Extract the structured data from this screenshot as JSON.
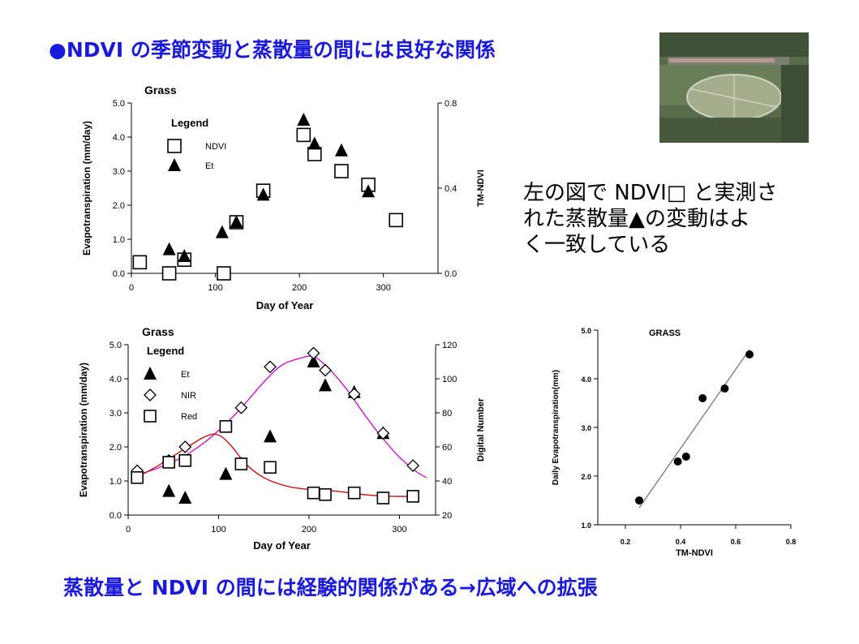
{
  "slide": {
    "title": "●NDVI の季節変動と蒸散量の間には良好な関係",
    "side_text": [
      "左の図で NDVI□ と実測さ",
      "れた蒸散量▲の変動はよ",
      "く一致している"
    ],
    "bottom_text": "蒸散量と NDVI の間には経験的関係がある→広域への拡張"
  },
  "photo": {
    "icon": "aerial-photo-grass-field"
  },
  "chart_data": [
    {
      "type": "scatter",
      "title": "Grass",
      "xlabel": "Day of Year",
      "ylabel": "Evapotranspiration (mm/day)",
      "y2label": "TM-NDVI",
      "xlim": [
        0,
        365
      ],
      "ylim": [
        0,
        5
      ],
      "y2lim": [
        0,
        0.8
      ],
      "xticks": [
        "0",
        "100",
        "200",
        "300"
      ],
      "yticks": [
        "0.0",
        "1.0",
        "2.0",
        "3.0",
        "4.0",
        "5.0"
      ],
      "y2ticks": [
        "0.0",
        "0.4",
        "0.8"
      ],
      "legend_title": "Legend",
      "legend_position": "top-left",
      "series": [
        {
          "name": "NDVI",
          "marker": "square",
          "axis": "right",
          "x": [
            10,
            45,
            63,
            110,
            125,
            157,
            205,
            218,
            250,
            282,
            315
          ],
          "y": [
            0.052,
            0.0,
            0.064,
            0.0,
            0.24,
            0.388,
            0.65,
            0.56,
            0.48,
            0.416,
            0.25
          ]
        },
        {
          "name": "Et",
          "marker": "triangle",
          "axis": "left",
          "x": [
            45,
            63,
            108,
            125,
            157,
            205,
            218,
            250,
            282
          ],
          "y": [
            0.7,
            0.5,
            1.2,
            1.5,
            2.3,
            4.5,
            3.8,
            3.6,
            2.4
          ]
        }
      ]
    },
    {
      "type": "line",
      "title": "Grass",
      "xlabel": "Day of Year",
      "ylabel": "Evapotranspiration (mm/day)",
      "y2label": "Digital Number",
      "xlim": [
        0,
        340
      ],
      "ylim": [
        0,
        5
      ],
      "y2lim": [
        20,
        120
      ],
      "xticks": [
        "0",
        "100",
        "200",
        "300"
      ],
      "yticks": [
        "0.0",
        "1.0",
        "2.0",
        "3.0",
        "4.0",
        "5.0"
      ],
      "y2ticks": [
        "20",
        "40",
        "60",
        "80",
        "100",
        "120"
      ],
      "legend_title": "Legend",
      "legend_position": "top-left",
      "series": [
        {
          "name": "Et",
          "marker": "triangle",
          "axis": "left",
          "x": [
            45,
            63,
            108,
            125,
            157,
            205,
            218,
            250,
            282
          ],
          "y": [
            0.7,
            0.5,
            1.2,
            1.5,
            2.3,
            4.5,
            3.8,
            3.6,
            2.4
          ]
        },
        {
          "name": "NIR",
          "marker": "diamond",
          "axis": "right",
          "color": "#cc00cc",
          "x": [
            10,
            45,
            63,
            108,
            125,
            157,
            205,
            218,
            250,
            282,
            315
          ],
          "y": [
            46,
            52,
            60,
            72,
            83,
            107,
            115,
            105,
            91,
            68,
            49
          ],
          "fit_x": [
            5,
            30,
            60,
            90,
            120,
            150,
            170,
            190,
            205,
            220,
            240,
            260,
            280,
            300,
            320,
            330
          ],
          "fit_y": [
            43,
            47,
            54,
            65,
            80,
            98,
            108,
            112,
            113,
            107,
            95,
            80,
            66,
            54,
            45,
            42
          ]
        },
        {
          "name": "Red",
          "marker": "square",
          "axis": "right",
          "color": "#cc0000",
          "x": [
            10,
            45,
            63,
            108,
            125,
            157,
            205,
            218,
            250,
            282,
            315
          ],
          "y": [
            42,
            51,
            52,
            72,
            50,
            48,
            33,
            32,
            33,
            30,
            31
          ],
          "fit_x": [
            5,
            30,
            60,
            85,
            100,
            115,
            130,
            150,
            175,
            200,
            230,
            260,
            290,
            320
          ],
          "fit_y": [
            41,
            48,
            58,
            66,
            67,
            60,
            50,
            42,
            37,
            35,
            34,
            32,
            31,
            31
          ]
        }
      ]
    },
    {
      "type": "scatter",
      "title": "GRASS",
      "xlabel": "TM-NDVI",
      "ylabel": "Daily Evapotranspiration(mm)",
      "xlim": [
        0.1,
        0.8
      ],
      "ylim": [
        1.0,
        5.0
      ],
      "xticks": [
        "0.2",
        "0.4",
        "0.6",
        "0.8"
      ],
      "yticks": [
        "1.0",
        "2.0",
        "3.0",
        "4.0",
        "5.0"
      ],
      "series": [
        {
          "marker": "circle",
          "x": [
            0.25,
            0.39,
            0.42,
            0.48,
            0.56,
            0.65
          ],
          "y": [
            1.5,
            2.3,
            2.4,
            3.6,
            3.8,
            4.5
          ],
          "fit_x": [
            0.25,
            0.65
          ],
          "fit_y": [
            1.35,
            4.6
          ]
        }
      ]
    }
  ]
}
